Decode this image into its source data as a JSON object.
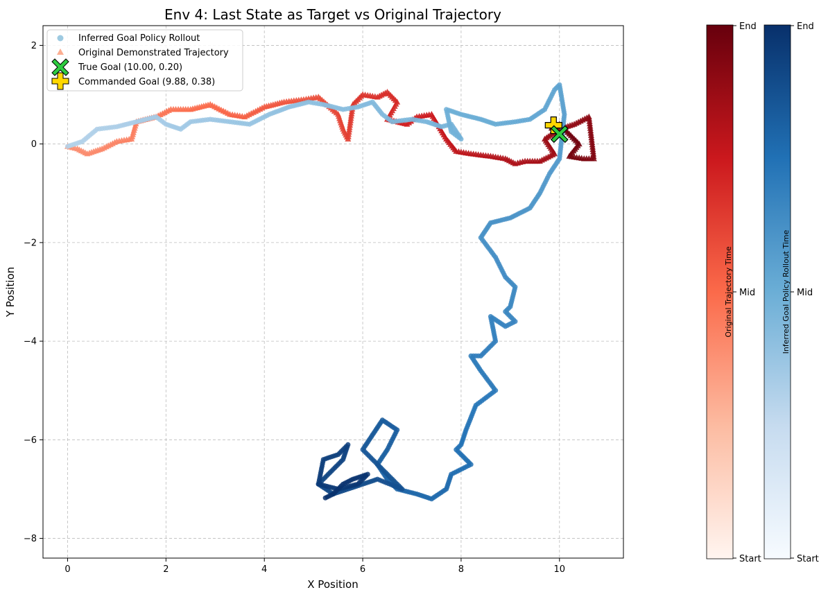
{
  "chart_data": {
    "type": "scatter",
    "title": "Env 4: Last State as Target vs Original Trajectory",
    "xlabel": "X Position",
    "ylabel": "Y Position",
    "xlim": [
      -0.5,
      11.3
    ],
    "ylim": [
      -8.4,
      2.4
    ],
    "x_ticks": [
      0,
      2,
      4,
      6,
      8,
      10
    ],
    "y_ticks": [
      2,
      0,
      -2,
      -4,
      -6,
      -8
    ],
    "x_tick_labels": [
      "0",
      "2",
      "4",
      "6",
      "8",
      "10"
    ],
    "y_tick_labels": [
      "2",
      "0",
      "−2",
      "−4",
      "−6",
      "−8"
    ],
    "grid": true,
    "legend_position": "top-left",
    "legend": [
      "Inferred Goal Policy Rollout",
      "Original Demonstrated Trajectory",
      "True Goal (10.00, 0.20)",
      "Commanded Goal (9.88, 0.38)"
    ],
    "series": [
      {
        "name": "Inferred Goal Policy Rollout",
        "marker": "circle",
        "colormap": "Blues",
        "x": [
          0.0,
          0.3,
          0.6,
          1.0,
          1.4,
          1.8,
          2.0,
          2.3,
          2.5,
          2.9,
          3.3,
          3.7,
          4.1,
          4.5,
          4.9,
          5.2,
          5.6,
          5.9,
          6.2,
          6.4,
          6.6,
          7.0,
          7.3,
          7.6,
          7.8,
          8.0,
          7.8,
          7.7,
          8.0,
          8.4,
          8.7,
          9.1,
          9.4,
          9.7,
          9.9,
          10.0,
          10.1,
          10.0,
          9.8,
          9.6,
          9.4,
          9.2,
          9.0,
          8.6,
          8.4,
          8.7,
          8.9,
          9.1,
          9.0,
          8.9,
          9.1,
          8.9,
          8.6,
          8.7,
          8.4,
          8.2,
          8.4,
          8.7,
          8.3,
          8.1,
          8.0,
          7.9,
          8.2,
          7.8,
          7.7,
          7.4,
          7.1,
          6.7,
          6.5,
          6.3,
          6.5,
          6.7,
          6.4,
          6.2,
          6.0,
          6.3,
          6.6,
          6.8,
          6.3,
          6.0,
          5.7,
          5.4,
          5.1,
          5.3,
          5.6,
          5.7,
          5.5,
          5.2,
          5.1,
          5.5,
          5.9,
          6.1,
          5.8,
          5.6,
          5.4,
          5.2
        ],
        "y": [
          -0.05,
          0.05,
          0.3,
          0.35,
          0.45,
          0.55,
          0.4,
          0.3,
          0.45,
          0.5,
          0.45,
          0.4,
          0.6,
          0.75,
          0.85,
          0.8,
          0.7,
          0.75,
          0.85,
          0.6,
          0.45,
          0.5,
          0.45,
          0.35,
          0.4,
          0.1,
          0.25,
          0.7,
          0.6,
          0.5,
          0.4,
          0.45,
          0.5,
          0.7,
          1.1,
          1.2,
          0.6,
          -0.3,
          -0.6,
          -1.0,
          -1.3,
          -1.4,
          -1.5,
          -1.6,
          -1.9,
          -2.3,
          -2.7,
          -2.9,
          -3.3,
          -3.4,
          -3.6,
          -3.7,
          -3.5,
          -4.0,
          -4.3,
          -4.3,
          -4.6,
          -5.0,
          -5.3,
          -5.8,
          -6.1,
          -6.2,
          -6.5,
          -6.7,
          -7.0,
          -7.2,
          -7.1,
          -7.0,
          -6.8,
          -6.5,
          -6.2,
          -5.8,
          -5.6,
          -5.9,
          -6.2,
          -6.5,
          -6.8,
          -7.0,
          -6.8,
          -6.9,
          -7.0,
          -7.1,
          -6.9,
          -6.7,
          -6.4,
          -6.1,
          -6.3,
          -6.4,
          -6.9,
          -7.0,
          -6.9,
          -6.7,
          -6.8,
          -6.9,
          -7.1,
          -7.2
        ]
      },
      {
        "name": "Original Demonstrated Trajectory",
        "marker": "triangle",
        "colormap": "Reds",
        "x": [
          0.0,
          0.2,
          0.4,
          0.7,
          1.0,
          1.3,
          1.4,
          1.8,
          2.1,
          2.5,
          2.9,
          3.3,
          3.6,
          4.0,
          4.4,
          4.8,
          5.1,
          5.5,
          5.6,
          5.7,
          5.8,
          6.0,
          6.3,
          6.5,
          6.7,
          6.5,
          6.9,
          7.1,
          7.4,
          7.7,
          7.9,
          8.2,
          8.6,
          8.9,
          9.1,
          9.3,
          9.6,
          9.9,
          9.7,
          10.0,
          10.3,
          10.6,
          10.7,
          10.5,
          10.2,
          10.4,
          10.0,
          9.8
        ],
        "y": [
          -0.05,
          -0.1,
          -0.2,
          -0.1,
          0.05,
          0.1,
          0.45,
          0.55,
          0.7,
          0.7,
          0.8,
          0.6,
          0.55,
          0.75,
          0.85,
          0.9,
          0.95,
          0.6,
          0.3,
          0.1,
          0.8,
          1.0,
          0.95,
          1.05,
          0.85,
          0.5,
          0.4,
          0.55,
          0.6,
          0.1,
          -0.15,
          -0.2,
          -0.25,
          -0.3,
          -0.4,
          -0.35,
          -0.35,
          -0.2,
          0.1,
          0.3,
          0.4,
          0.55,
          -0.3,
          -0.3,
          -0.25,
          0.0,
          0.4,
          0.3
        ]
      },
      {
        "name": "True Goal (10.00, 0.20)",
        "marker": "x",
        "color": "#2ecc40",
        "x": [
          10.0
        ],
        "y": [
          0.2
        ]
      },
      {
        "name": "Commanded Goal (9.88, 0.38)",
        "marker": "plus",
        "color": "#ffd700",
        "x": [
          9.88
        ],
        "y": [
          0.38
        ]
      }
    ],
    "colorbars": [
      {
        "label": "Original Trajectory Time",
        "colormap": "Reds",
        "ticks": [
          "Start",
          "Mid",
          "End"
        ]
      },
      {
        "label": "Inferred Goal Policy Rollout Time",
        "colormap": "Blues",
        "ticks": [
          "Start",
          "Mid",
          "End"
        ]
      }
    ]
  }
}
